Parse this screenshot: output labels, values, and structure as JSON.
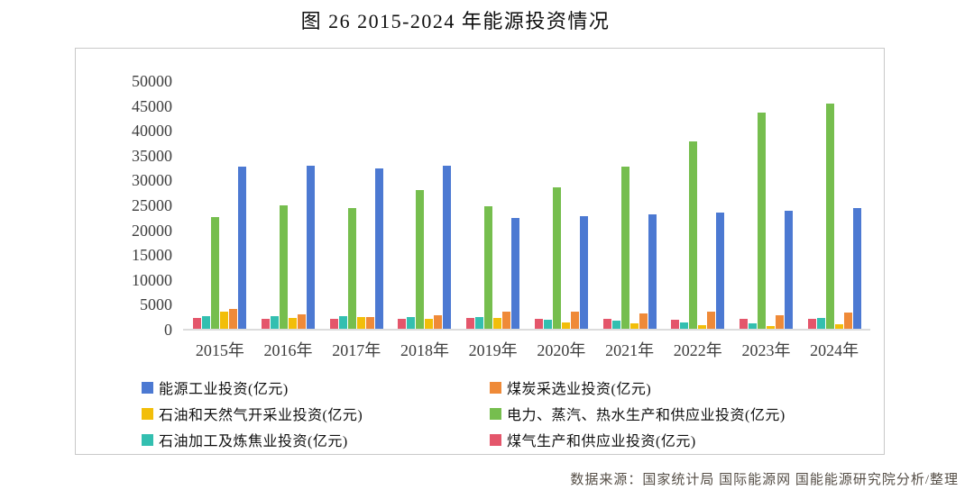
{
  "page": {
    "title": "图 26 2015-2024 年能源投资情况",
    "source_note": "数据来源：国家统计局 国际能源网 国能能源研究院分析/整理"
  },
  "chart_data": {
    "type": "bar",
    "title": "图 26 2015-2024 年能源投资情况",
    "categories": [
      "2015年",
      "2016年",
      "2017年",
      "2018年",
      "2019年",
      "2020年",
      "2021年",
      "2022年",
      "2023年",
      "2024年"
    ],
    "series": [
      {
        "name": "煤气生产和供应业投资(亿元)",
        "color": "#E4566B",
        "values": [
          2400,
          2100,
          2200,
          2250,
          2350,
          2250,
          2150,
          2050,
          2100,
          2150
        ]
      },
      {
        "name": "石油加工及炼焦业投资(亿元)",
        "color": "#33BFB0",
        "values": [
          2750,
          2650,
          2750,
          2550,
          2550,
          1950,
          1800,
          1400,
          1300,
          2350
        ]
      },
      {
        "name": "电力、蒸汽、热水生产和供应业投资(亿元)",
        "color": "#76BE4E",
        "values": [
          22700,
          24950,
          24450,
          28000,
          24800,
          28600,
          32800,
          37800,
          43650,
          45500
        ]
      },
      {
        "name": "石油和天然气开采业投资(亿元)",
        "color": "#F2BE09",
        "values": [
          3550,
          2350,
          2500,
          2150,
          2350,
          1450,
          1250,
          950,
          800,
          1050
        ]
      },
      {
        "name": "煤炭采选业投资(亿元)",
        "color": "#EF8A38",
        "values": [
          4100,
          3050,
          2550,
          2900,
          3650,
          3650,
          3200,
          3700,
          2950,
          3500
        ]
      },
      {
        "name": "能源工业投资(亿元)",
        "color": "#4C79D2",
        "values": [
          32750,
          33050,
          32450,
          32900,
          22500,
          22850,
          23250,
          23600,
          24000,
          24450
        ]
      }
    ],
    "xlabel": "",
    "ylabel": "",
    "ylim": [
      0,
      50000
    ],
    "ytick_step": 5000,
    "yticks": [
      "0",
      "5000",
      "10000",
      "15000",
      "20000",
      "25000",
      "30000",
      "35000",
      "40000",
      "45000",
      "50000"
    ],
    "grid": false,
    "legend_position": "bottom",
    "legend": {
      "items": [
        {
          "label": "能源工业投资(亿元)",
          "color": "#4C79D2"
        },
        {
          "label": "煤炭采选业投资(亿元)",
          "color": "#EF8A38"
        },
        {
          "label": "石油和天然气开采业投资(亿元)",
          "color": "#F2BE09"
        },
        {
          "label": "电力、蒸汽、热水生产和供应业投资(亿元)",
          "color": "#76BE4E"
        },
        {
          "label": "石油加工及炼焦业投资(亿元)",
          "color": "#33BFB0"
        },
        {
          "label": "煤气生产和供应业投资(亿元)",
          "color": "#E4566B"
        }
      ]
    }
  }
}
